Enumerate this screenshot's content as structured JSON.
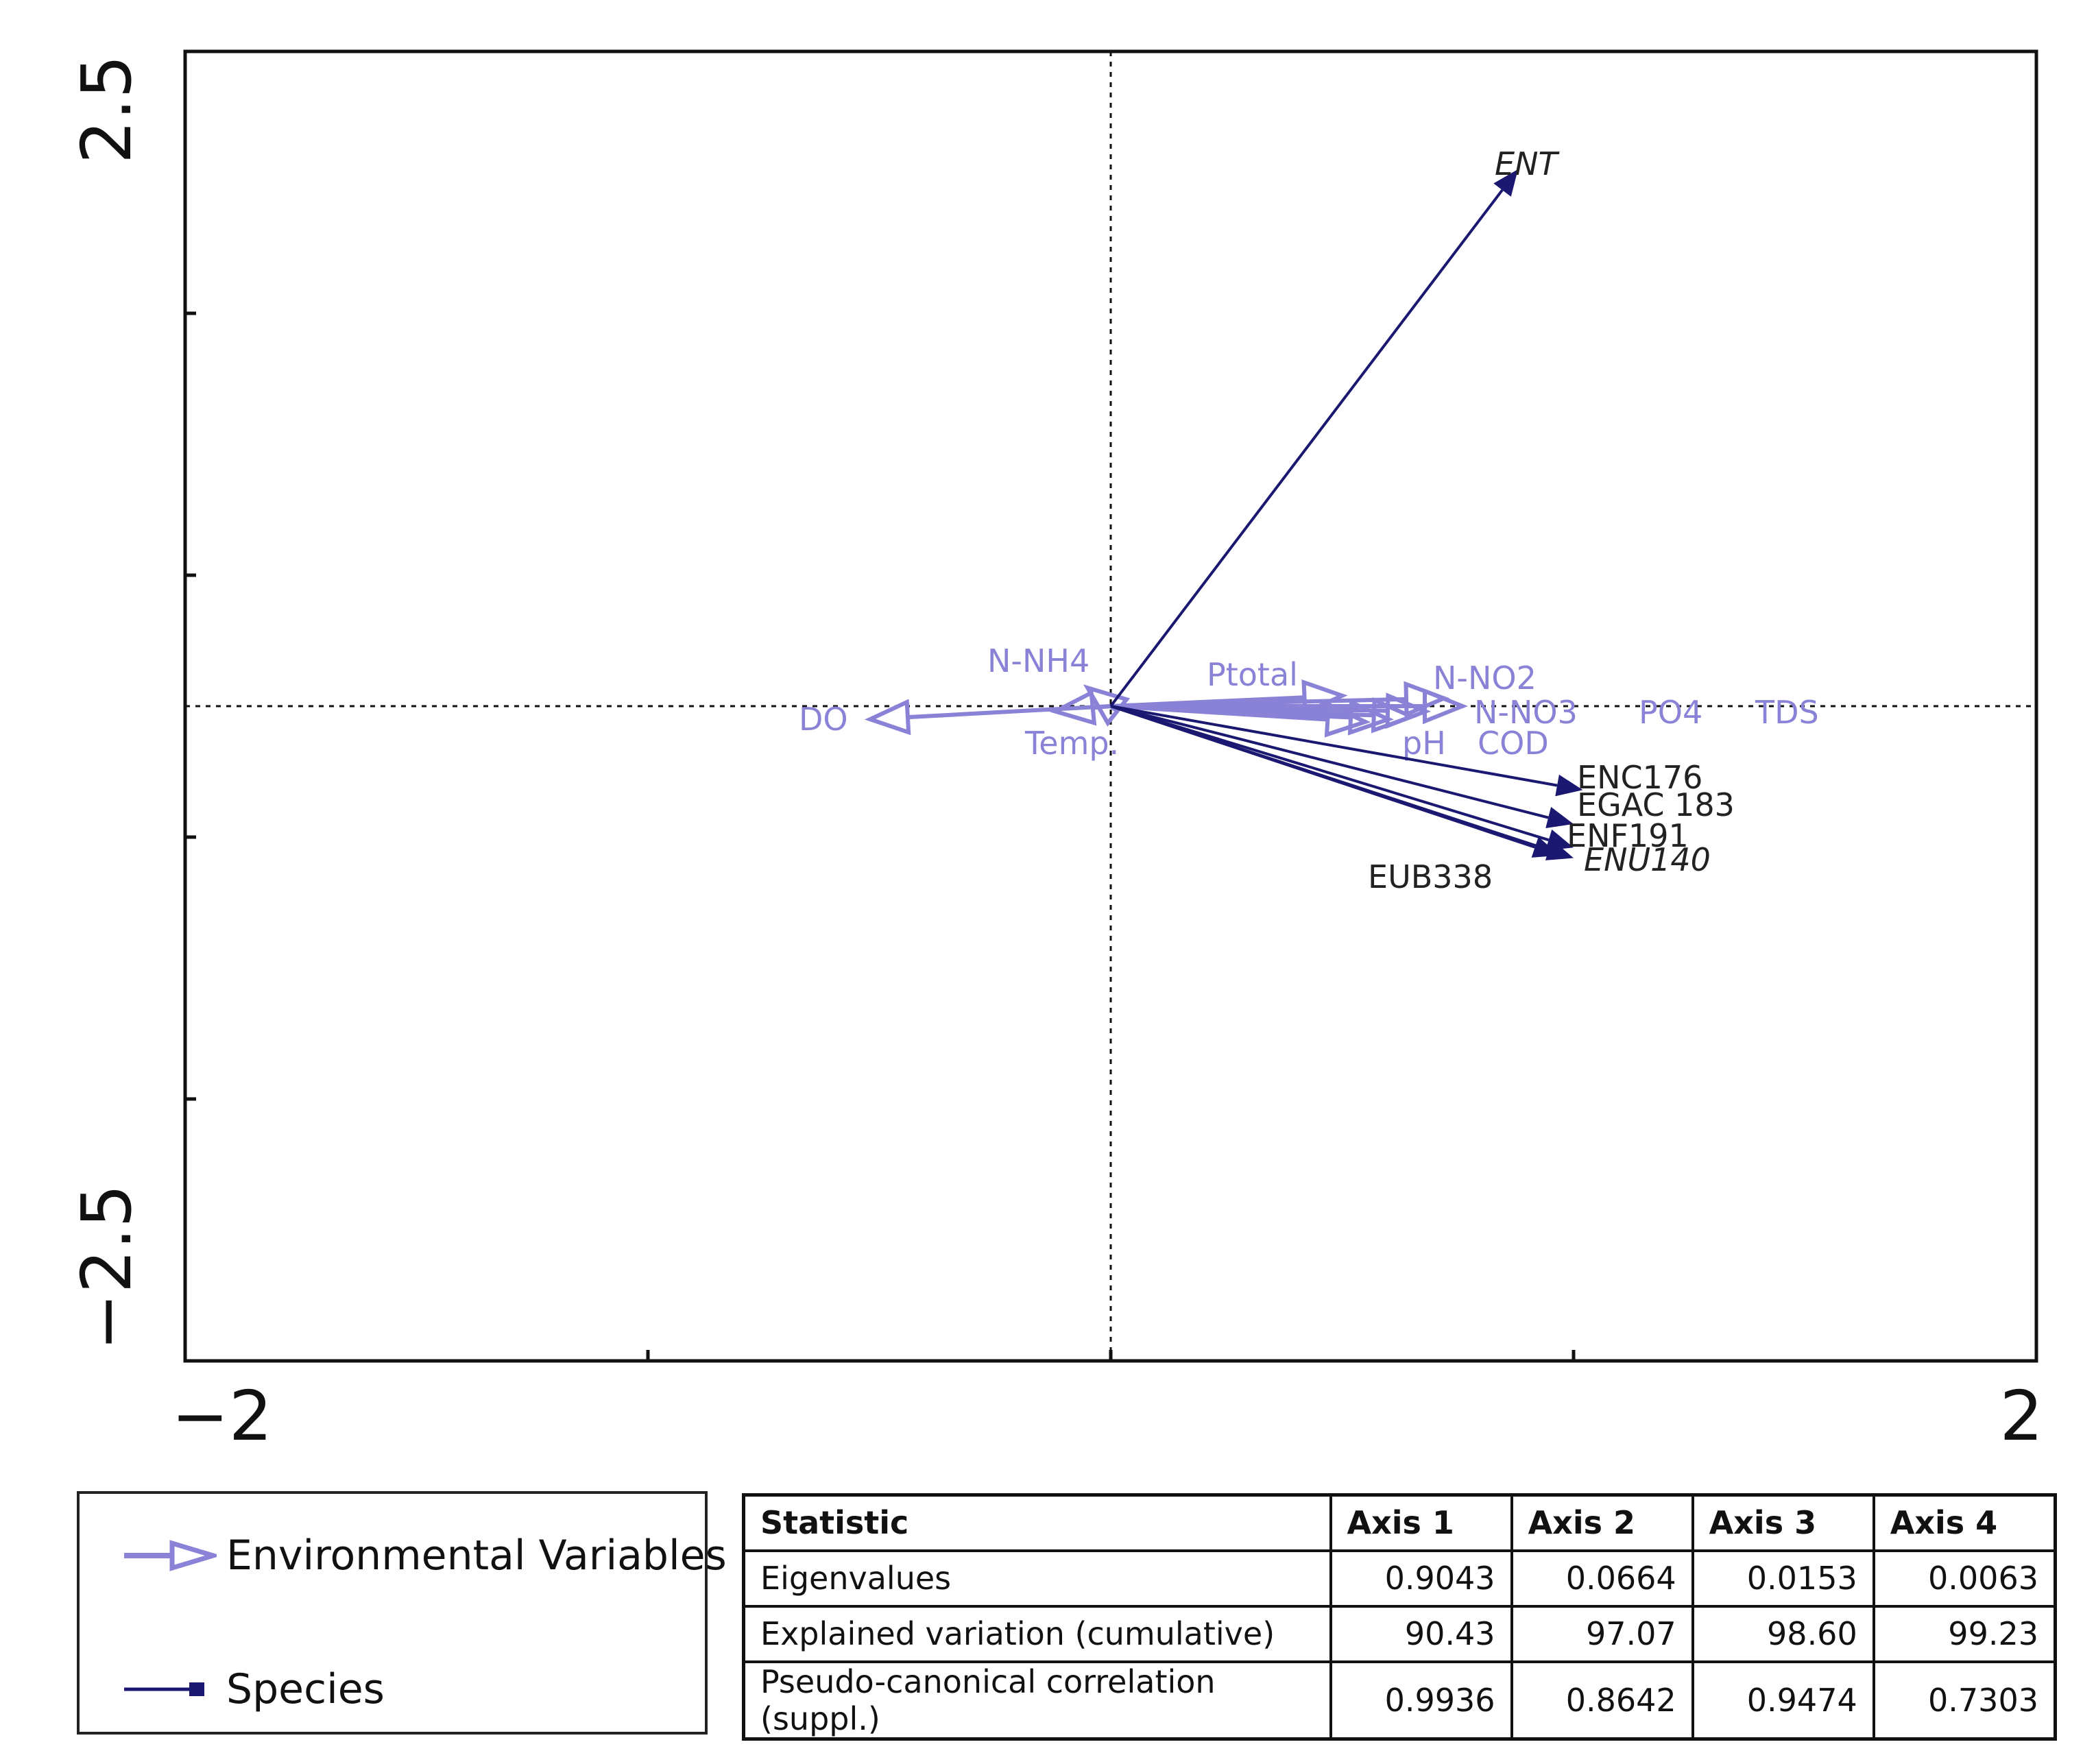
{
  "chart_data": {
    "type": "scatter",
    "subtype": "biplot",
    "xlim": [
      -2,
      2
    ],
    "ylim": [
      -2.5,
      2.5
    ],
    "x_ticks": [
      -2,
      2
    ],
    "y_ticks": [
      -2.5,
      2.5
    ],
    "reference_lines": {
      "x": 0,
      "y": 0,
      "style": "dotted"
    },
    "environmental_variables": [
      {
        "name": "DO",
        "x": -0.52,
        "y": -0.05
      },
      {
        "name": "N-NH4",
        "x": -0.05,
        "y": 0.07
      },
      {
        "name": "Temp.",
        "x": -0.12,
        "y": -0.02
      },
      {
        "name": "Ptotal",
        "x": 0.5,
        "y": 0.04
      },
      {
        "name": "N-NO2",
        "x": 0.72,
        "y": 0.03
      },
      {
        "name": "N-NO3",
        "x": 0.76,
        "y": 0.0
      },
      {
        "name": "PO4",
        "x": 0.68,
        "y": -0.02
      },
      {
        "name": "TDS",
        "x": 0.65,
        "y": -0.04
      },
      {
        "name": "pH",
        "x": 0.55,
        "y": -0.06
      },
      {
        "name": "COD",
        "x": 0.6,
        "y": -0.05
      }
    ],
    "species": [
      {
        "name": "ENT",
        "x": 0.88,
        "y": 2.05,
        "italic": true
      },
      {
        "name": "ENC176",
        "x": 1.02,
        "y": -0.32,
        "italic": false
      },
      {
        "name": "EGAC 183",
        "x": 1.0,
        "y": -0.45,
        "italic": false
      },
      {
        "name": "ENF191",
        "x": 1.0,
        "y": -0.54,
        "italic": false
      },
      {
        "name": "ENU140",
        "x": 1.0,
        "y": -0.58,
        "italic": true
      },
      {
        "name": "EUB338",
        "x": 0.97,
        "y": -0.57,
        "italic": false
      }
    ]
  },
  "colors": {
    "environmental": "#8a82d6",
    "species": "#1a1870",
    "axis": "#111111"
  },
  "legend": {
    "environmental_label": "Environmental Variables",
    "species_label": "Species"
  },
  "table": {
    "headers": [
      "Statistic",
      "Axis 1",
      "Axis 2",
      "Axis 3",
      "Axis 4"
    ],
    "rows": [
      [
        "Eigenvalues",
        "0.9043",
        "0.0664",
        "0.0153",
        "0.0063"
      ],
      [
        "Explained variation (cumulative)",
        "90.43",
        "97.07",
        "98.60",
        "99.23"
      ],
      [
        "Pseudo-canonical correlation (suppl.)",
        "0.9936",
        "0.8642",
        "0.9474",
        "0.7303"
      ]
    ]
  }
}
